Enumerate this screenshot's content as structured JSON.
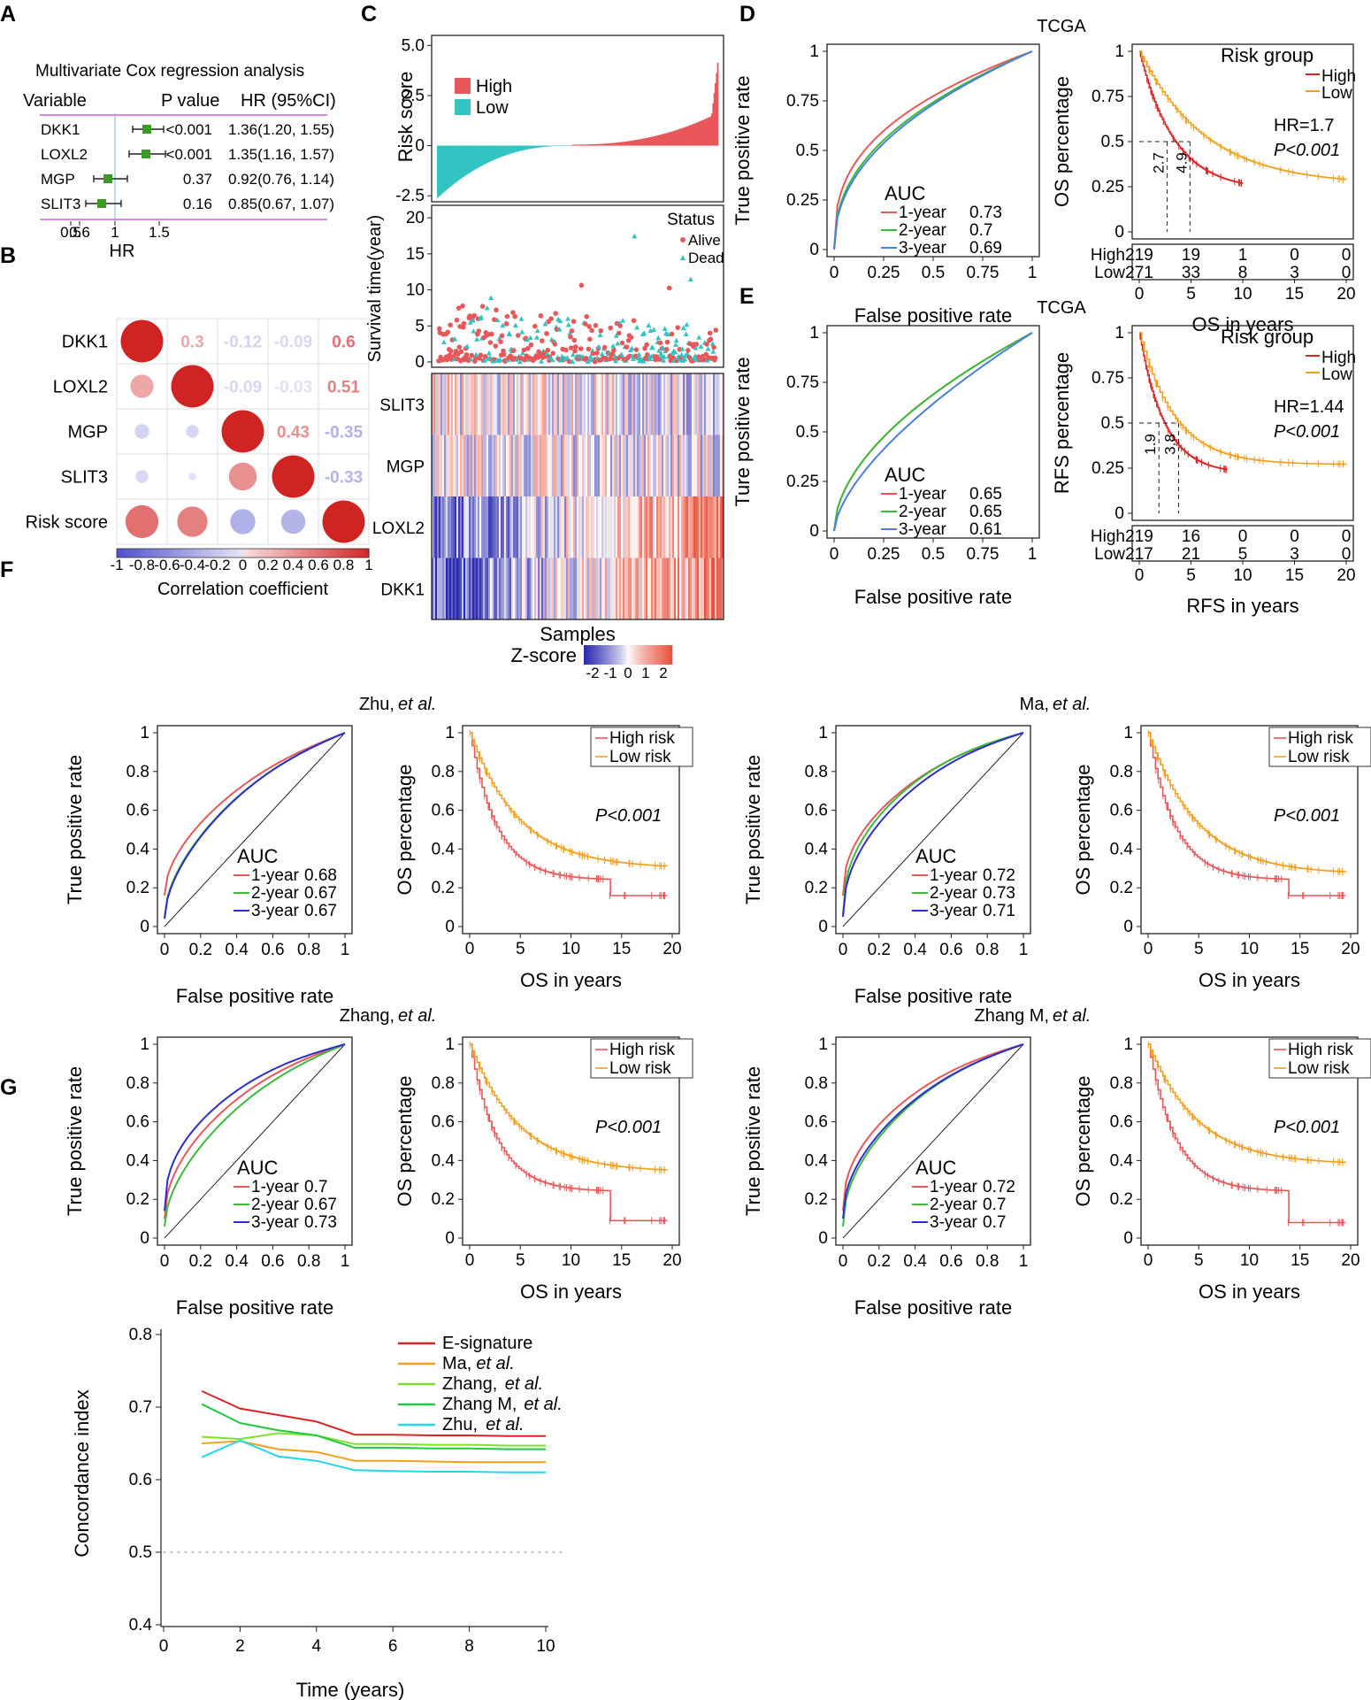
{
  "figure_title": "Prognostic risk model figure panels A-G",
  "panel_labels": [
    "A",
    "B",
    "C",
    "D",
    "E",
    "F",
    "G"
  ],
  "colors": {
    "red": "#e8575a",
    "teal": "#33c3c3",
    "dark_red": "#d62728",
    "orange": "#f0a020",
    "green": "#3cba3c",
    "blue": "#4a7fe0",
    "navy": "#2f2fc8"
  },
  "chart_data": [
    {
      "panel": "A",
      "type": "forest",
      "title": "Multivariate Cox regression analysis",
      "headers": {
        "variable": "Variable",
        "p": "P value",
        "hr": "HR (95%CI)"
      },
      "rows": [
        {
          "variable": "DKK1",
          "p": "<0.001",
          "hr_text": "1.36(1.20, 1.55)",
          "hr": 1.36,
          "lo": 1.2,
          "hi": 1.55
        },
        {
          "variable": "LOXL2",
          "p": "<0.001",
          "hr_text": "1.35(1.16, 1.57)",
          "hr": 1.35,
          "lo": 1.16,
          "hi": 1.57
        },
        {
          "variable": "MGP",
          "p": "0.37",
          "hr_text": "0.92(0.76, 1.14)",
          "hr": 0.92,
          "lo": 0.76,
          "hi": 1.14
        },
        {
          "variable": "SLIT3",
          "p": "0.16",
          "hr_text": "0.85(0.67, 1.07)",
          "hr": 0.85,
          "lo": 0.67,
          "hi": 1.07
        }
      ],
      "ticks": [
        "0.5",
        "0.6",
        "1",
        "1.5"
      ],
      "xlabel": "HR"
    },
    {
      "panel": "B",
      "type": "correlation-matrix",
      "labels": [
        "DKK1",
        "LOXL2",
        "MGP",
        "SLIT3",
        "Risk score"
      ],
      "upper": [
        {
          "r": 0,
          "c": 1,
          "text": "0.3",
          "v": 0.3
        },
        {
          "r": 0,
          "c": 2,
          "text": "-0.12",
          "v": -0.12
        },
        {
          "r": 0,
          "c": 3,
          "text": "-0.09",
          "v": -0.09
        },
        {
          "r": 0,
          "c": 4,
          "text": "0.6",
          "v": 0.6
        },
        {
          "r": 1,
          "c": 2,
          "text": "-0.09",
          "v": -0.09
        },
        {
          "r": 1,
          "c": 3,
          "text": "-0.03",
          "v": -0.03
        },
        {
          "r": 1,
          "c": 4,
          "text": "0.51",
          "v": 0.51
        },
        {
          "r": 2,
          "c": 3,
          "text": "0.43",
          "v": 0.43
        },
        {
          "r": 2,
          "c": 4,
          "text": "-0.35",
          "v": -0.35
        },
        {
          "r": 3,
          "c": 4,
          "text": "-0.33",
          "v": -0.33
        }
      ],
      "lower": [
        {
          "r": 1,
          "c": 0,
          "v": 0.3
        },
        {
          "r": 2,
          "c": 0,
          "v": -0.12
        },
        {
          "r": 2,
          "c": 1,
          "v": -0.09
        },
        {
          "r": 3,
          "c": 0,
          "v": -0.09
        },
        {
          "r": 3,
          "c": 1,
          "v": -0.03
        },
        {
          "r": 3,
          "c": 2,
          "v": 0.43
        },
        {
          "r": 4,
          "c": 0,
          "v": 0.6
        },
        {
          "r": 4,
          "c": 1,
          "v": 0.51
        },
        {
          "r": 4,
          "c": 2,
          "v": -0.35
        },
        {
          "r": 4,
          "c": 3,
          "v": -0.33
        }
      ],
      "colorbar_ticks": [
        "-1",
        "-0.8",
        "-0.6",
        "-0.4",
        "-0.2",
        "0",
        "0.2",
        "0.4",
        "0.6",
        "0.8",
        "1"
      ],
      "colorbar_label": "Correlation coefficient"
    },
    {
      "panel": "C",
      "type": "risk-plot",
      "risk_ylabel": "Risk score",
      "risk_ticks": [
        "5.0",
        "2.5",
        "0",
        "-2.5"
      ],
      "risk_ylim": [
        -2.8,
        5.5
      ],
      "legend": [
        "High",
        "Low"
      ],
      "surv_ylabel": "Survival time(year)",
      "surv_ticks": [
        "20",
        "15",
        "10",
        "5",
        "0"
      ],
      "surv_ylim": [
        0,
        21
      ],
      "status_title": "Status",
      "status_legend": [
        "Alive",
        "Dead"
      ],
      "genes": [
        "SLIT3",
        "MGP",
        "LOXL2",
        "DKK1"
      ],
      "xlabel": "Samples",
      "zscore_label": "Z-score",
      "zscore_ticks": [
        "-2",
        "-1",
        "0",
        "1",
        "2"
      ]
    },
    {
      "panel": "D",
      "type": "roc+km",
      "cohort": "TCGA",
      "roc": {
        "xlabel": "False positive rate",
        "ylabel": "True positive rate",
        "ticks": [
          "0",
          "0.25",
          "0.5",
          "0.75",
          "1"
        ],
        "auc_title": "AUC",
        "series": [
          {
            "name": "1-year",
            "auc": "0.73",
            "value": 0.73
          },
          {
            "name": "2-year",
            "auc": "0.7",
            "value": 0.7
          },
          {
            "name": "3-year",
            "auc": "0.69",
            "value": 0.69
          }
        ]
      },
      "km": {
        "xlabel": "OS in years",
        "ylabel": "OS percentage",
        "legend_title": "Risk group",
        "legend": [
          "High",
          "Low"
        ],
        "hr": "HR=1.7",
        "p": "P<0.001",
        "median_high": "2.7",
        "median_low": "4.9",
        "yticks": [
          "0",
          "0.25",
          "0.5",
          "0.75",
          "1"
        ],
        "xticks": [
          "0",
          "5",
          "10",
          "15",
          "20"
        ],
        "risk_table": [
          {
            "group": "High",
            "counts": [
              "219",
              "19",
              "1",
              "0",
              "0"
            ]
          },
          {
            "group": "Low",
            "counts": [
              "271",
              "33",
              "8",
              "3",
              "0"
            ]
          }
        ]
      }
    },
    {
      "panel": "E",
      "type": "roc+km",
      "cohort": "TCGA",
      "roc": {
        "xlabel": "False positive rate",
        "ylabel": "Ture positive rate",
        "ticks": [
          "0",
          "0.25",
          "0.5",
          "0.75",
          "1"
        ],
        "auc_title": "AUC",
        "series": [
          {
            "name": "1-year",
            "auc": "0.65",
            "value": 0.65
          },
          {
            "name": "2-year",
            "auc": "0.65",
            "value": 0.65
          },
          {
            "name": "3-year",
            "auc": "0.61",
            "value": 0.61
          }
        ]
      },
      "km": {
        "xlabel": "RFS in years",
        "ylabel": "RFS percentage",
        "legend_title": "Risk group",
        "legend": [
          "High",
          "Low"
        ],
        "hr": "HR=1.44",
        "p": "P<0.001",
        "median_high": "1.9",
        "median_low": "3.8",
        "yticks": [
          "0",
          "0.25",
          "0.5",
          "0.75",
          "1"
        ],
        "xticks": [
          "0",
          "5",
          "10",
          "15",
          "20"
        ],
        "risk_table": [
          {
            "group": "High",
            "counts": [
              "219",
              "16",
              "0",
              "0",
              "0"
            ]
          },
          {
            "group": "Low",
            "counts": [
              "217",
              "21",
              "5",
              "3",
              "0"
            ]
          }
        ]
      }
    },
    {
      "panel": "F",
      "type": "validation-cohorts",
      "roc_xlabel": "False positive rate",
      "roc_ylabel": "True positive rate",
      "km_xlabel": "OS in years",
      "km_ylabel": "OS percentage",
      "roc_ticks": [
        "0",
        "0.2",
        "0.4",
        "0.6",
        "0.8",
        "1"
      ],
      "km_yticks": [
        "0",
        "0.2",
        "0.4",
        "0.6",
        "0.8",
        "1"
      ],
      "km_xticks": [
        "0",
        "5",
        "10",
        "15",
        "20"
      ],
      "km_legend": [
        "High risk",
        "Low risk"
      ],
      "p": "P<0.001",
      "auc_title": "AUC",
      "cohorts": [
        {
          "name": "Zhu,",
          "etal": "et al.",
          "aucs": [
            {
              "name": "1-year",
              "auc": "0.68"
            },
            {
              "name": "2-year",
              "auc": "0.67"
            },
            {
              "name": "3-year",
              "auc": "0.67"
            }
          ],
          "low_plateau": 0.3,
          "high_plateau": 0.16
        },
        {
          "name": "Ma,",
          "etal": "et al.",
          "aucs": [
            {
              "name": "1-year",
              "auc": "0.72"
            },
            {
              "name": "2-year",
              "auc": "0.73"
            },
            {
              "name": "3-year",
              "auc": "0.71"
            }
          ],
          "low_plateau": 0.27,
          "high_plateau": 0.16
        },
        {
          "name": "Zhang,",
          "etal": "et al.",
          "aucs": [
            {
              "name": "1-year",
              "auc": "0.7"
            },
            {
              "name": "2-year",
              "auc": "0.67"
            },
            {
              "name": "3-year",
              "auc": "0.73"
            }
          ],
          "low_plateau": 0.34,
          "high_plateau": 0.09
        },
        {
          "name": "Zhang M,",
          "etal": "et al.",
          "aucs": [
            {
              "name": "1-year",
              "auc": "0.72"
            },
            {
              "name": "2-year",
              "auc": "0.7"
            },
            {
              "name": "3-year",
              "auc": "0.7"
            }
          ],
          "low_plateau": 0.38,
          "high_plateau": 0.08
        }
      ]
    },
    {
      "panel": "G",
      "type": "line",
      "xlabel": "Time (years)",
      "ylabel": "Concordance index",
      "xlim": [
        0,
        10
      ],
      "ylim": [
        0.4,
        0.8
      ],
      "xticks": [
        "0",
        "2",
        "4",
        "6",
        "8",
        "10"
      ],
      "yticks": [
        "0.4",
        "0.5",
        "0.6",
        "0.7",
        "0.8"
      ],
      "reference": 0.5,
      "x": [
        1,
        2,
        3,
        4,
        5,
        6,
        7,
        8,
        9,
        10
      ],
      "series": [
        {
          "name": "E-signature",
          "etal": "",
          "values": [
            0.722,
            0.698,
            0.689,
            0.68,
            0.662,
            0.662,
            0.661,
            0.661,
            0.66,
            0.66
          ]
        },
        {
          "name": "Ma,",
          "etal": "et al.",
          "values": [
            0.65,
            0.653,
            0.642,
            0.638,
            0.626,
            0.626,
            0.625,
            0.624,
            0.624,
            0.624
          ]
        },
        {
          "name": "Zhang,",
          "etal": "et al.",
          "values": [
            0.659,
            0.656,
            0.664,
            0.661,
            0.649,
            0.649,
            0.648,
            0.648,
            0.647,
            0.647
          ]
        },
        {
          "name": "Zhang M,",
          "etal": "et al.",
          "values": [
            0.704,
            0.678,
            0.668,
            0.661,
            0.644,
            0.644,
            0.643,
            0.643,
            0.642,
            0.642
          ]
        },
        {
          "name": "Zhu,",
          "etal": "et al.",
          "values": [
            0.631,
            0.654,
            0.632,
            0.626,
            0.613,
            0.612,
            0.611,
            0.611,
            0.61,
            0.61
          ]
        }
      ]
    }
  ]
}
